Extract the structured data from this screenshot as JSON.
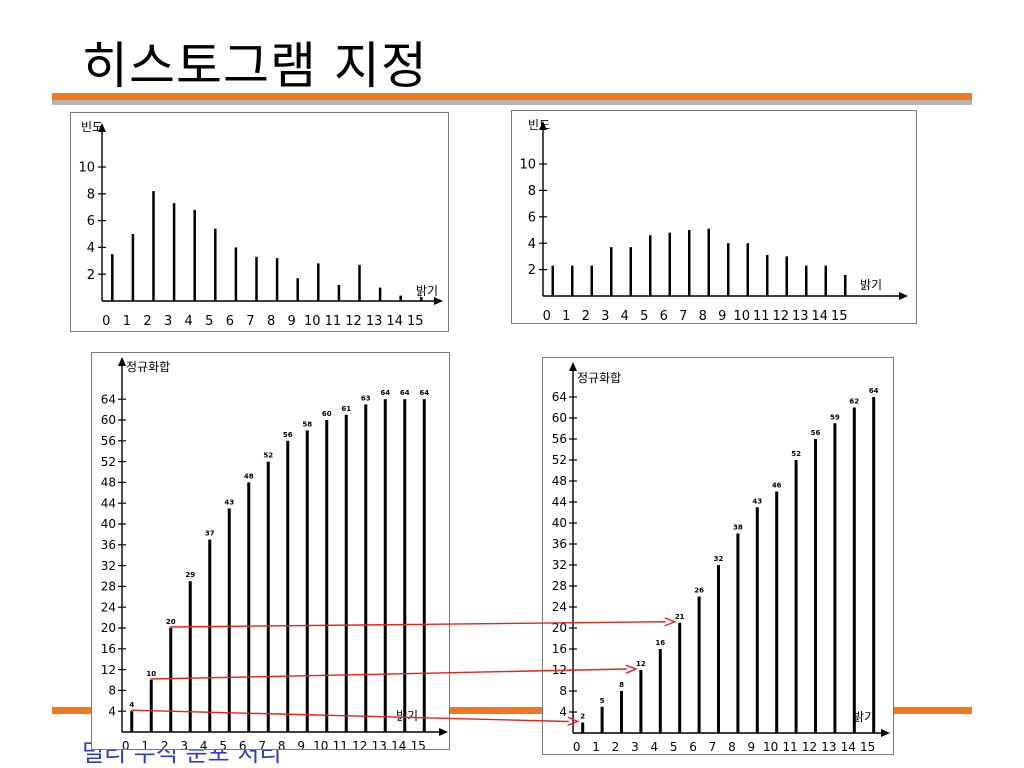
{
  "slide": {
    "title": "히스토그램 지정",
    "footer_text": "밀리 누적 분포 처리"
  },
  "colors": {
    "accent": "#f07823",
    "rule_gray": "#b4b4b4",
    "footer_text": "#2c3fbf",
    "arrow": "#e8221b"
  },
  "chart_data": [
    {
      "type": "bar",
      "ylabel": "빈도",
      "xlabel": "밝기",
      "categories": [
        "0",
        "1",
        "2",
        "3",
        "4",
        "5",
        "6",
        "7",
        "8",
        "9",
        "10",
        "11",
        "12",
        "13",
        "14",
        "15"
      ],
      "values": [
        3.5,
        5,
        8.2,
        7.3,
        6.8,
        5.4,
        4,
        3.3,
        3.2,
        1.7,
        2.8,
        1.2,
        2.7,
        1,
        0.4,
        0.3
      ],
      "ylim": [
        0,
        11
      ],
      "yticks": [
        "2",
        "4",
        "6",
        "8",
        "10"
      ],
      "grid": false
    },
    {
      "type": "bar",
      "ylabel": "빈도",
      "xlabel": "밝기",
      "categories": [
        "0",
        "1",
        "2",
        "3",
        "4",
        "5",
        "6",
        "7",
        "8",
        "9",
        "10",
        "11",
        "12",
        "13",
        "14",
        "15"
      ],
      "values": [
        2.3,
        2.3,
        2.3,
        3.7,
        3.7,
        4.6,
        4.8,
        5,
        5.1,
        4,
        4,
        3.1,
        3,
        2.3,
        2.3,
        1.6
      ],
      "ylim": [
        0,
        11
      ],
      "yticks": [
        "2",
        "4",
        "6",
        "8",
        "10"
      ],
      "grid": false
    },
    {
      "type": "bar",
      "ylabel": "정규화합",
      "xlabel": "밝기",
      "categories": [
        "0",
        "1",
        "2",
        "3",
        "4",
        "5",
        "6",
        "7",
        "8",
        "9",
        "10",
        "11",
        "12",
        "13",
        "14",
        "15"
      ],
      "values": [
        4,
        10,
        20,
        29,
        37,
        43,
        48,
        52,
        56,
        58,
        60,
        61,
        63,
        64,
        64,
        64
      ],
      "data_labels": [
        "4",
        "10",
        "20",
        "29",
        "37",
        "43",
        "48",
        "52",
        "56",
        "58",
        "60",
        "61",
        "63",
        "64",
        "64",
        "64"
      ],
      "ylim": [
        0,
        67
      ],
      "yticks": [
        "4",
        "8",
        "12",
        "16",
        "20",
        "24",
        "28",
        "32",
        "36",
        "40",
        "44",
        "48",
        "52",
        "56",
        "60",
        "64"
      ],
      "grid": false
    },
    {
      "type": "bar",
      "ylabel": "정규화합",
      "xlabel": "밝기",
      "categories": [
        "0",
        "1",
        "2",
        "3",
        "4",
        "5",
        "6",
        "7",
        "8",
        "9",
        "10",
        "11",
        "12",
        "13",
        "14",
        "15"
      ],
      "values": [
        2,
        5,
        8,
        12,
        16,
        21,
        26,
        32,
        38,
        43,
        46,
        52,
        56,
        59,
        62,
        64
      ],
      "data_labels": [
        "2",
        "5",
        "8",
        "12",
        "16",
        "21",
        "26",
        "32",
        "38",
        "43",
        "46",
        "52",
        "56",
        "59",
        "62",
        "64"
      ],
      "ylim": [
        0,
        67
      ],
      "yticks": [
        "4",
        "8",
        "12",
        "16",
        "20",
        "24",
        "28",
        "32",
        "36",
        "40",
        "44",
        "48",
        "52",
        "56",
        "60",
        "64"
      ],
      "grid": false
    }
  ],
  "mapping_arrows": [
    {
      "from_level": "2",
      "to_level": "5"
    },
    {
      "from_level": "1",
      "to_level": "3"
    },
    {
      "from_level": "0",
      "to_level": "0"
    }
  ]
}
